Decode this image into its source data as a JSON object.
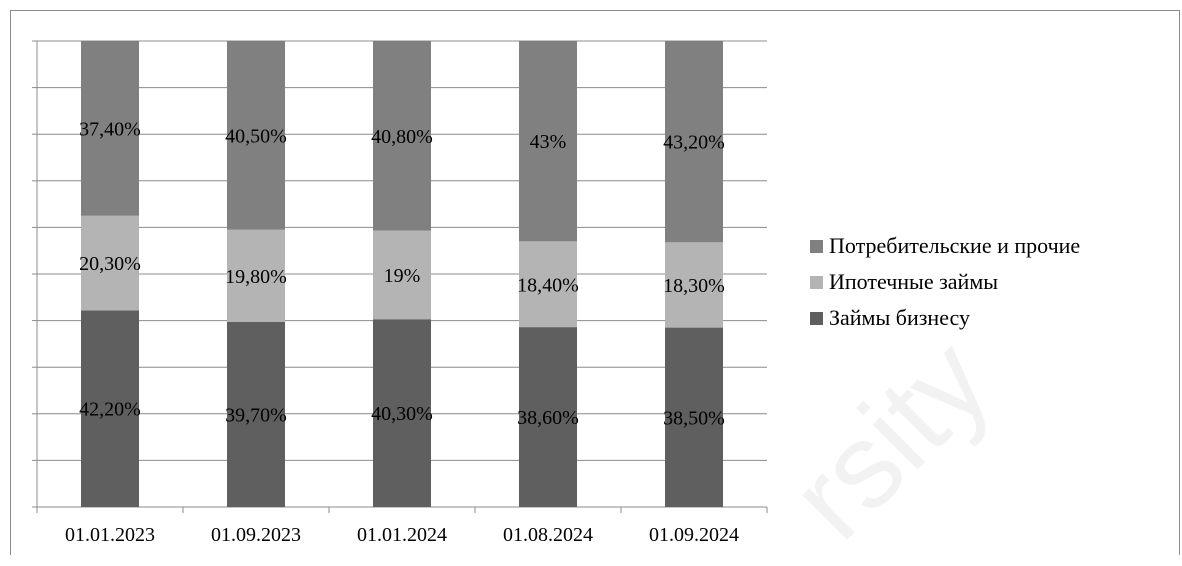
{
  "chart_data": {
    "type": "bar",
    "stacked": true,
    "categories": [
      "01.01.2023",
      "01.09.2023",
      "01.01.2024",
      "01.08.2024",
      "01.09.2024"
    ],
    "series": [
      {
        "name": "Займы бизнесу",
        "values": [
          42.2,
          39.7,
          40.3,
          38.6,
          38.5
        ],
        "labels": [
          "42,20%",
          "39,70%",
          "40,30%",
          "38,60%",
          "38,50%"
        ],
        "color": "#5f5f5f"
      },
      {
        "name": "Ипотечные займы",
        "values": [
          20.3,
          19.8,
          19,
          18.4,
          18.3
        ],
        "labels": [
          "20,30%",
          "19,80%",
          "19%",
          "18,40%",
          "18,30%"
        ],
        "color": "#b4b4b4"
      },
      {
        "name": "Потребительские и прочие",
        "values": [
          37.4,
          40.5,
          40.8,
          43,
          43.2
        ],
        "labels": [
          "37,40%",
          "40,50%",
          "40,80%",
          "43%",
          "43,20%"
        ],
        "color": "#808080"
      }
    ],
    "ylim": [
      0,
      100
    ],
    "grid": true,
    "legend_position": "right"
  },
  "legend": {
    "items": [
      {
        "label": "Потребительские и прочие",
        "color": "#808080"
      },
      {
        "label": "Ипотечные займы",
        "color": "#b4b4b4"
      },
      {
        "label": "Займы бизнесу",
        "color": "#5f5f5f"
      }
    ]
  },
  "watermark": {
    "text": "rsity"
  }
}
